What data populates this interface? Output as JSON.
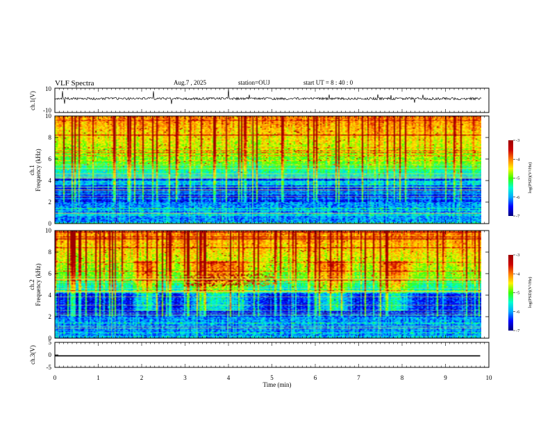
{
  "header": {
    "title": "VLF Spectra",
    "date": "Aug.7 , 2025",
    "station": "station=OUJ",
    "start": "start UT = 8 : 40 : 0"
  },
  "colors": {
    "cmap": [
      "#00007a",
      "#0000ff",
      "#00aaff",
      "#00ffd0",
      "#3cff00",
      "#fff200",
      "#ff7a00",
      "#cc0000",
      "#9c0000"
    ],
    "trace": "#000000",
    "line": "#e8e040"
  },
  "chart_data": [
    {
      "id": "ch1-waveform",
      "type": "line",
      "ylabel": "ch.1(V)",
      "ylim": [
        -10,
        10
      ],
      "ytick_labels": [
        "10",
        "-10"
      ],
      "description_values": {
        "baseline": 0
      }
    },
    {
      "id": "ch1-spectrogram",
      "type": "heatmap",
      "ylabel_line1": "ch.1",
      "ylabel_line2": "Frequency (kHz)",
      "ylim": [
        0,
        10
      ],
      "ytick_labels": [
        "0",
        "2",
        "4",
        "6",
        "8",
        "10"
      ],
      "colorbar": {
        "label": "log(PSD)(V²/Hz)",
        "range": [
          -7,
          -3
        ],
        "tick_labels": [
          "-3",
          "-4",
          "-5",
          "-6",
          "-7"
        ]
      }
    },
    {
      "id": "ch2-spectrogram",
      "type": "heatmap",
      "ylabel_line1": "ch.2",
      "ylabel_line2": "Frequency (kHz)",
      "ylim": [
        0,
        10
      ],
      "ytick_labels": [
        "0",
        "2",
        "4",
        "6",
        "8",
        "10"
      ],
      "colorbar": {
        "label": "log(PSD)(V²/Hz)",
        "range": [
          -7,
          -3
        ],
        "tick_labels": [
          "-3",
          "-4",
          "-5",
          "-6",
          "-7"
        ]
      }
    },
    {
      "id": "ch3-waveform",
      "type": "line",
      "ylabel": "ch.3(V)",
      "ylim": [
        -5,
        5
      ],
      "ytick_labels": [
        "5",
        "0",
        "-5"
      ],
      "x": [
        0,
        9.8
      ],
      "y": [
        -0.4,
        -0.4
      ]
    }
  ],
  "xaxis": {
    "label": "Time (min)",
    "xlim": [
      0,
      10
    ],
    "tick_labels": [
      "0",
      "1",
      "2",
      "3",
      "4",
      "5",
      "6",
      "7",
      "8",
      "9",
      "10"
    ]
  }
}
